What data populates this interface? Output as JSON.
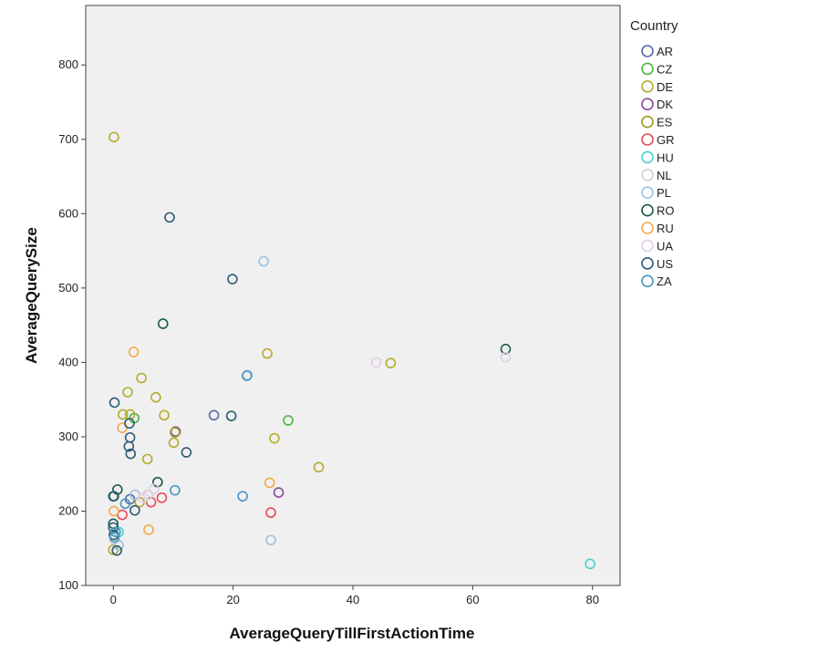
{
  "chart_data": {
    "type": "scatter",
    "xlabel": "AverageQueryTillFirstActionTime",
    "ylabel": "AverageQuerySize",
    "xlim": [
      -4.6,
      84.6
    ],
    "ylim": [
      100,
      880
    ],
    "xticks": [
      0,
      20,
      40,
      60,
      80
    ],
    "yticks": [
      100,
      200,
      300,
      400,
      500,
      600,
      700,
      800
    ],
    "xtick_labels": [
      "0",
      "20",
      "40",
      "60",
      "80"
    ],
    "ytick_labels": [
      "100",
      "200",
      "300",
      "400",
      "500",
      "600",
      "700",
      "800"
    ],
    "grid": false,
    "legend": {
      "title": "Country",
      "placement": "right"
    },
    "series": [
      {
        "name": "AR",
        "color": "#5866a8",
        "points": [
          [
            16.8,
            329
          ],
          [
            2.8,
            216
          ]
        ]
      },
      {
        "name": "CZ",
        "color": "#4bb546",
        "points": [
          [
            29.2,
            322
          ],
          [
            3.5,
            325
          ]
        ]
      },
      {
        "name": "DE",
        "color": "#b4ad2d",
        "points": [
          [
            0.1,
            703
          ],
          [
            25.7,
            412
          ],
          [
            46.3,
            399
          ],
          [
            4.7,
            379
          ],
          [
            2.4,
            360
          ],
          [
            7.1,
            353
          ],
          [
            2.8,
            330
          ],
          [
            8.5,
            329
          ],
          [
            10.1,
            292
          ],
          [
            26.9,
            298
          ],
          [
            5.7,
            270
          ],
          [
            34.3,
            259
          ],
          [
            0.0,
            148
          ],
          [
            1.6,
            330
          ],
          [
            4.4,
            212
          ]
        ]
      },
      {
        "name": "DK",
        "color": "#8c4a9c",
        "points": [
          [
            10.4,
            307
          ],
          [
            27.6,
            225
          ]
        ]
      },
      {
        "name": "ES",
        "color": "#9a9a2a",
        "points": [
          [
            10.3,
            306
          ]
        ]
      },
      {
        "name": "GR",
        "color": "#e84a5a",
        "points": [
          [
            8.1,
            218
          ],
          [
            6.3,
            212
          ],
          [
            26.3,
            198
          ],
          [
            1.5,
            195
          ]
        ]
      },
      {
        "name": "HU",
        "color": "#4ad0d4",
        "points": [
          [
            79.6,
            129
          ],
          [
            0.9,
            172
          ]
        ]
      },
      {
        "name": "NL",
        "color": "#d0d0d0",
        "points": [
          [
            5.8,
            222
          ],
          [
            0.2,
            162
          ]
        ]
      },
      {
        "name": "PL",
        "color": "#9cc2e2",
        "points": [
          [
            25.1,
            536
          ],
          [
            22.4,
            383
          ],
          [
            26.3,
            161
          ],
          [
            0.9,
            154
          ],
          [
            3.6,
            222
          ]
        ]
      },
      {
        "name": "RO",
        "color": "#1f5a4a",
        "points": [
          [
            8.3,
            452
          ],
          [
            65.5,
            418
          ],
          [
            0.7,
            229
          ],
          [
            7.4,
            239
          ],
          [
            0.1,
            220
          ],
          [
            0.0,
            183
          ]
        ]
      },
      {
        "name": "RU",
        "color": "#f5a94a",
        "points": [
          [
            3.4,
            414
          ],
          [
            26.1,
            238
          ],
          [
            5.9,
            175
          ],
          [
            1.5,
            312
          ],
          [
            0.1,
            200
          ]
        ]
      },
      {
        "name": "UA",
        "color": "#e2cdea",
        "points": [
          [
            43.9,
            400
          ],
          [
            65.5,
            407
          ],
          [
            6.8,
            230
          ],
          [
            5.0,
            218
          ]
        ]
      },
      {
        "name": "US",
        "color": "#2d5c76",
        "points": [
          [
            9.4,
            595
          ],
          [
            19.9,
            512
          ],
          [
            19.7,
            328
          ],
          [
            2.7,
            318
          ],
          [
            2.8,
            299
          ],
          [
            2.6,
            287
          ],
          [
            2.9,
            277
          ],
          [
            12.2,
            279
          ],
          [
            0.2,
            346
          ],
          [
            3.6,
            201
          ],
          [
            0.6,
            147
          ],
          [
            0.0,
            220
          ],
          [
            0.0,
            178
          ],
          [
            0.1,
            168
          ]
        ]
      },
      {
        "name": "ZA",
        "color": "#4a96bf",
        "points": [
          [
            22.3,
            382
          ],
          [
            10.3,
            228
          ],
          [
            21.6,
            220
          ],
          [
            2.0,
            210
          ],
          [
            0.4,
            172
          ],
          [
            0.2,
            165
          ]
        ]
      }
    ]
  }
}
